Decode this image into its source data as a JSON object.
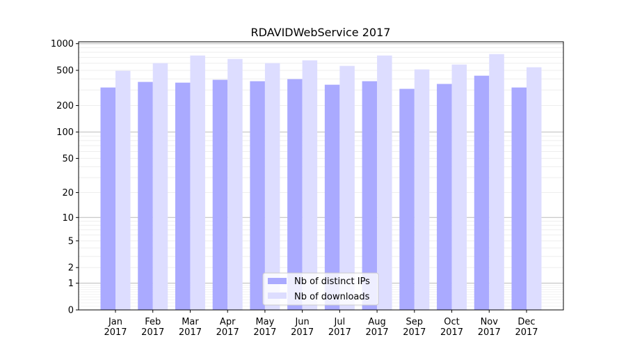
{
  "chart_data": {
    "type": "bar",
    "title": "RDAVIDWebService 2017",
    "xlabel": "",
    "ylabel": "",
    "yscale": "log10(y+1)",
    "ylim": [
      0,
      1050
    ],
    "yticks": [
      0,
      1,
      2,
      5,
      10,
      20,
      50,
      100,
      200,
      500,
      1000
    ],
    "categories": [
      "Jan\n2017",
      "Feb\n2017",
      "Mar\n2017",
      "Apr\n2017",
      "May\n2017",
      "Jun\n2017",
      "Jul\n2017",
      "Aug\n2017",
      "Sep\n2017",
      "Oct\n2017",
      "Nov\n2017",
      "Dec\n2017"
    ],
    "series": [
      {
        "name": "Nb of distinct IPs",
        "color": "#aaaaff",
        "values": [
          320,
          370,
          363,
          391,
          377,
          398,
          344,
          377,
          309,
          351,
          435,
          320
        ]
      },
      {
        "name": "Nb of downloads",
        "color": "#ddddff",
        "values": [
          494,
          603,
          735,
          672,
          603,
          648,
          561,
          735,
          512,
          581,
          763,
          541
        ]
      }
    ],
    "grid": true,
    "legend": "bottom-center"
  }
}
